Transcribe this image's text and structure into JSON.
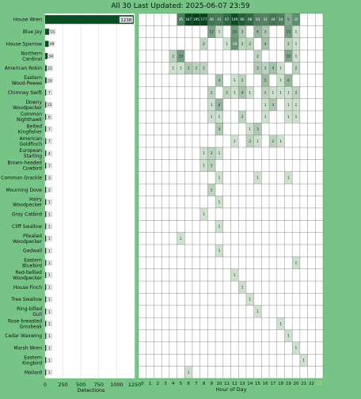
{
  "title": "All 30 Last Updated: 2025-06-07 23:59",
  "colors": {
    "background": "#77c487",
    "panel": "#ffffff",
    "bar": "#0b4d22",
    "grid": "#6f6f6f"
  },
  "chart_data": [
    {
      "type": "bar",
      "orientation": "horizontal",
      "xlabel": "Detections",
      "ylabel": "",
      "xlim": [
        0,
        1250
      ],
      "xticks": [
        0,
        250,
        500,
        750,
        1000,
        1250
      ],
      "categories": [
        "House Wren",
        "Blue Jay",
        "House Sparrow",
        "Northern Cardinal",
        "American Robin",
        "Eastern Wood-Pewee",
        "Chimney Swift",
        "Downy Woodpecker",
        "Common Nighthawk",
        "Belted Kingfisher",
        "American Goldfinch",
        "European Starling",
        "Brown-headed Cowbird",
        "Common Grackle",
        "Mourning Dove",
        "Hairy Woodpecker",
        "Gray Catbird",
        "Cliff Swallow",
        "Pileated Woodpecker",
        "Gadwall",
        "Eastern Bluebird",
        "Red-bellied Woodpecker",
        "House Finch",
        "Tree Swallow",
        "Ring-billed Gull",
        "Rose-breasted Grosbeak",
        "Cedar Waxwing",
        "Marsh Wren",
        "Eastern Kingbird",
        "Mallard"
      ],
      "values": [
        1238,
        55,
        49,
        34,
        21,
        20,
        7,
        15,
        6,
        7,
        7,
        4,
        7,
        3,
        2,
        1,
        1,
        1,
        1,
        1,
        1,
        1,
        1,
        1,
        1,
        1,
        1,
        1,
        1,
        1
      ]
    },
    {
      "type": "heatmap",
      "xlabel": "Hour of Day",
      "ylabel": "",
      "x": [
        0,
        1,
        2,
        3,
        4,
        5,
        6,
        7,
        8,
        9,
        10,
        11,
        12,
        13,
        14,
        15,
        16,
        17,
        18,
        19,
        20,
        21,
        22,
        23
      ],
      "rows": [
        [
          null,
          null,
          null,
          null,
          null,
          35,
          167,
          195,
          177,
          46,
          41,
          67,
          149,
          90,
          68,
          33,
          31,
          44,
          34,
          9,
          22,
          null,
          null,
          null
        ],
        [
          null,
          null,
          null,
          null,
          null,
          null,
          null,
          null,
          null,
          12,
          1,
          null,
          15,
          3,
          null,
          6,
          3,
          null,
          null,
          13,
          1,
          null,
          null,
          null
        ],
        [
          null,
          null,
          null,
          null,
          null,
          null,
          null,
          null,
          2,
          null,
          null,
          1,
          18,
          2,
          2,
          null,
          4,
          null,
          null,
          2,
          1,
          null,
          null,
          null
        ],
        [
          null,
          null,
          null,
          null,
          2,
          13,
          null,
          null,
          null,
          null,
          null,
          null,
          null,
          null,
          null,
          2,
          null,
          null,
          null,
          10,
          1,
          null,
          null,
          null
        ],
        [
          null,
          null,
          null,
          null,
          1,
          1,
          3,
          2,
          2,
          null,
          null,
          null,
          null,
          null,
          null,
          3,
          2,
          4,
          1,
          null,
          2,
          null,
          null,
          null
        ],
        [
          null,
          null,
          null,
          null,
          null,
          null,
          null,
          null,
          null,
          null,
          4,
          null,
          1,
          2,
          null,
          null,
          5,
          null,
          1,
          6,
          null,
          null,
          null,
          null
        ],
        [
          null,
          null,
          null,
          null,
          null,
          null,
          null,
          null,
          null,
          2,
          null,
          2,
          1,
          4,
          1,
          null,
          2,
          1,
          1,
          1,
          2,
          null,
          null,
          null
        ],
        [
          null,
          null,
          null,
          null,
          null,
          null,
          null,
          null,
          null,
          1,
          6,
          null,
          null,
          null,
          null,
          null,
          1,
          3,
          null,
          1,
          1,
          null,
          null,
          null
        ],
        [
          null,
          null,
          null,
          null,
          null,
          null,
          null,
          null,
          null,
          1,
          1,
          null,
          null,
          2,
          null,
          null,
          1,
          null,
          null,
          1,
          1,
          null,
          null,
          null
        ],
        [
          null,
          null,
          null,
          null,
          null,
          null,
          null,
          null,
          null,
          null,
          3,
          null,
          null,
          null,
          1,
          3,
          null,
          null,
          null,
          null,
          null,
          null,
          null,
          null
        ],
        [
          null,
          null,
          null,
          null,
          null,
          null,
          null,
          null,
          null,
          null,
          null,
          null,
          1,
          null,
          2,
          1,
          null,
          2,
          1,
          null,
          null,
          null,
          null,
          null
        ],
        [
          null,
          null,
          null,
          null,
          null,
          null,
          null,
          null,
          1,
          2,
          1,
          null,
          null,
          null,
          null,
          null,
          null,
          null,
          null,
          null,
          null,
          null,
          null,
          null
        ],
        [
          null,
          null,
          null,
          null,
          null,
          null,
          null,
          null,
          1,
          2,
          null,
          null,
          null,
          null,
          null,
          null,
          null,
          null,
          null,
          null,
          null,
          null,
          null,
          null
        ],
        [
          null,
          null,
          null,
          null,
          null,
          null,
          null,
          null,
          null,
          null,
          1,
          null,
          null,
          null,
          null,
          1,
          null,
          null,
          null,
          1,
          null,
          null,
          null,
          null
        ],
        [
          null,
          null,
          null,
          null,
          null,
          null,
          null,
          null,
          null,
          2,
          null,
          null,
          null,
          null,
          null,
          null,
          null,
          null,
          null,
          null,
          null,
          null,
          null,
          null
        ],
        [
          null,
          null,
          null,
          null,
          null,
          null,
          null,
          null,
          null,
          null,
          1,
          null,
          null,
          null,
          null,
          null,
          null,
          null,
          null,
          null,
          null,
          null,
          null,
          null
        ],
        [
          null,
          null,
          null,
          null,
          null,
          null,
          null,
          null,
          1,
          null,
          null,
          null,
          null,
          null,
          null,
          null,
          null,
          null,
          null,
          null,
          null,
          null,
          null,
          null
        ],
        [
          null,
          null,
          null,
          null,
          null,
          null,
          null,
          null,
          null,
          null,
          1,
          null,
          null,
          null,
          null,
          null,
          null,
          null,
          null,
          null,
          null,
          null,
          null,
          null
        ],
        [
          null,
          null,
          null,
          null,
          null,
          1,
          null,
          null,
          null,
          null,
          null,
          null,
          null,
          null,
          null,
          null,
          null,
          null,
          null,
          null,
          null,
          null,
          null,
          null
        ],
        [
          null,
          null,
          null,
          null,
          null,
          null,
          null,
          null,
          null,
          null,
          1,
          null,
          null,
          null,
          null,
          null,
          null,
          null,
          null,
          null,
          null,
          null,
          null,
          null
        ],
        [
          null,
          null,
          null,
          null,
          null,
          null,
          null,
          null,
          null,
          null,
          null,
          null,
          null,
          null,
          null,
          null,
          null,
          null,
          null,
          null,
          1,
          null,
          null,
          null
        ],
        [
          null,
          null,
          null,
          null,
          null,
          null,
          null,
          null,
          null,
          null,
          null,
          null,
          1,
          null,
          null,
          null,
          null,
          null,
          null,
          null,
          null,
          null,
          null,
          null
        ],
        [
          null,
          null,
          null,
          null,
          null,
          null,
          null,
          null,
          null,
          null,
          null,
          null,
          null,
          1,
          null,
          null,
          null,
          null,
          null,
          null,
          null,
          null,
          null,
          null
        ],
        [
          null,
          null,
          null,
          null,
          null,
          null,
          null,
          null,
          null,
          null,
          null,
          null,
          null,
          null,
          1,
          null,
          null,
          null,
          null,
          null,
          null,
          null,
          null,
          null
        ],
        [
          null,
          null,
          null,
          null,
          null,
          null,
          null,
          null,
          null,
          null,
          null,
          null,
          null,
          null,
          null,
          1,
          null,
          null,
          null,
          null,
          null,
          null,
          null,
          null
        ],
        [
          null,
          null,
          null,
          null,
          null,
          null,
          null,
          null,
          null,
          null,
          null,
          null,
          null,
          null,
          null,
          null,
          null,
          null,
          1,
          null,
          null,
          null,
          null,
          null
        ],
        [
          null,
          null,
          null,
          null,
          null,
          null,
          null,
          null,
          null,
          null,
          null,
          null,
          null,
          null,
          null,
          null,
          null,
          null,
          null,
          1,
          null,
          null,
          null,
          null
        ],
        [
          null,
          null,
          null,
          null,
          null,
          null,
          null,
          null,
          null,
          null,
          null,
          null,
          null,
          null,
          null,
          null,
          null,
          null,
          null,
          null,
          1,
          null,
          null,
          null
        ],
        [
          null,
          null,
          null,
          null,
          null,
          null,
          null,
          null,
          null,
          null,
          null,
          null,
          null,
          null,
          null,
          null,
          null,
          null,
          null,
          null,
          null,
          1,
          null,
          null
        ],
        [
          null,
          null,
          null,
          null,
          null,
          null,
          1,
          null,
          null,
          null,
          null,
          null,
          null,
          null,
          null,
          null,
          null,
          null,
          null,
          null,
          null,
          null,
          null,
          null
        ]
      ]
    }
  ]
}
